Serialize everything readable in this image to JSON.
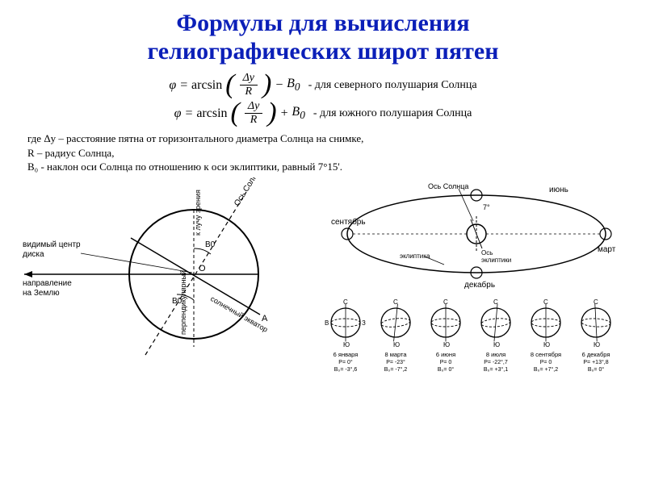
{
  "title_color": "#0b1fb8",
  "title_line1": "Формулы для вычисления",
  "title_line2": "гелиографических широт пятен",
  "formula1": {
    "lhs": "φ",
    "eq": "=",
    "fn": "arcsin",
    "num": "Δy",
    "den": "R",
    "op": "−",
    "b0": "B",
    "b0sub": "0",
    "desc": "- для северного полушария Солнца"
  },
  "formula2": {
    "lhs": "φ",
    "eq": "=",
    "fn": "arcsin",
    "num": "Δy",
    "den": "R",
    "op": "+",
    "b0": "B",
    "b0sub": "0",
    "desc": "- для южного полушария Солнца"
  },
  "where1": "где Δy – расстояние пятна от горизонтального диаметра Солнца на снимке,",
  "where2": "R – радиус Солнца,",
  "where3": "B₀ - наклон оси Солнца по отношению к оси эклиптики, равный 7°15'.",
  "left_diag": {
    "center_label": "видимый центр\nдиска",
    "dir_label": "направление\nна Землю",
    "axis_label": "Ось Солнца",
    "line_label": "к лучу зрения",
    "perp_label": "перпендикулярный",
    "equator_label": "солнечный экватор",
    "B0_top": "B0",
    "B0_bot": "B0",
    "O": "O",
    "A": "A"
  },
  "right_diag": {
    "axis_sun": "Ось Солнца",
    "axis_ecl": "Ось эклиптики",
    "angle": "7°",
    "ecl_label": "эклиптика",
    "jun": "июнь",
    "mar": "март",
    "sep": "сентябрь",
    "dec": "декабрь",
    "row": [
      {
        "top": "С",
        "left": "В",
        "right": "З",
        "bot": "Ю",
        "d": "6 января",
        "p": "P= 0°",
        "b": "B₀= -3°,6"
      },
      {
        "top": "С",
        "left": "",
        "right": "",
        "bot": "Ю",
        "d": "8 марта",
        "p": "P= -23°",
        "b": "B₀= -7°,2"
      },
      {
        "top": "С",
        "left": "",
        "right": "",
        "bot": "Ю",
        "d": "6 июня",
        "p": "P= 0",
        "b": "B₀= 0°"
      },
      {
        "top": "С",
        "left": "",
        "right": "",
        "bot": "Ю",
        "d": "8 июля",
        "p": "P= -22°,7",
        "b": "B₀= +3°,1"
      },
      {
        "top": "С",
        "left": "",
        "right": "",
        "bot": "Ю",
        "d": "8 сентября",
        "p": "P= 0",
        "b": "B₀= +7°,2"
      },
      {
        "top": "С",
        "left": "",
        "right": "",
        "bot": "Ю",
        "d": "6 декабря",
        "p": "P= +13°,8",
        "b": "B₀= 0°"
      }
    ]
  }
}
